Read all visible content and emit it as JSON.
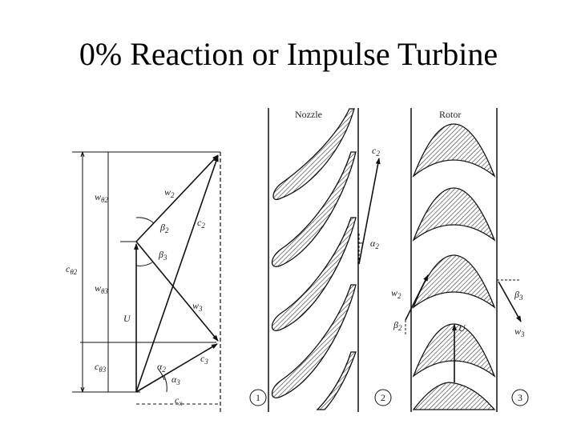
{
  "title": "0% Reaction or Impulse Turbine",
  "blade_rows": {
    "nozzle_label": "Nozzle",
    "rotor_label": "Rotor"
  },
  "stations": [
    "1",
    "2",
    "3"
  ],
  "velocity_triangle": {
    "w2": "w",
    "w2_sub": "2",
    "c2": "c",
    "c2_sub": "2",
    "w3": "w",
    "w3_sub": "3",
    "c3": "c",
    "c3_sub": "3",
    "U": "U",
    "beta2": "β",
    "beta2_sub": "2",
    "beta3": "β",
    "beta3_sub": "3",
    "alpha2": "α",
    "alpha2_sub": "2",
    "alpha3": "α",
    "alpha3_sub": "3",
    "wtheta2": "w",
    "wtheta2_sub": "θ2",
    "wtheta3": "w",
    "wtheta3_sub": "θ3",
    "ctheta2": "c",
    "ctheta2_sub": "θ2",
    "ctheta3": "c",
    "ctheta3_sub": "θ3",
    "cx": "c",
    "cx_sub": "x"
  },
  "nozzle_exit": {
    "c2": "c",
    "c2_sub": "2",
    "alpha2": "α",
    "alpha2_sub": "2"
  },
  "rotor_inlet": {
    "w2": "w",
    "w2_sub": "2",
    "beta2": "β",
    "beta2_sub": "2",
    "U": "U"
  },
  "rotor_exit": {
    "w3": "w",
    "w3_sub": "3",
    "beta3": "β",
    "beta3_sub": "3"
  }
}
